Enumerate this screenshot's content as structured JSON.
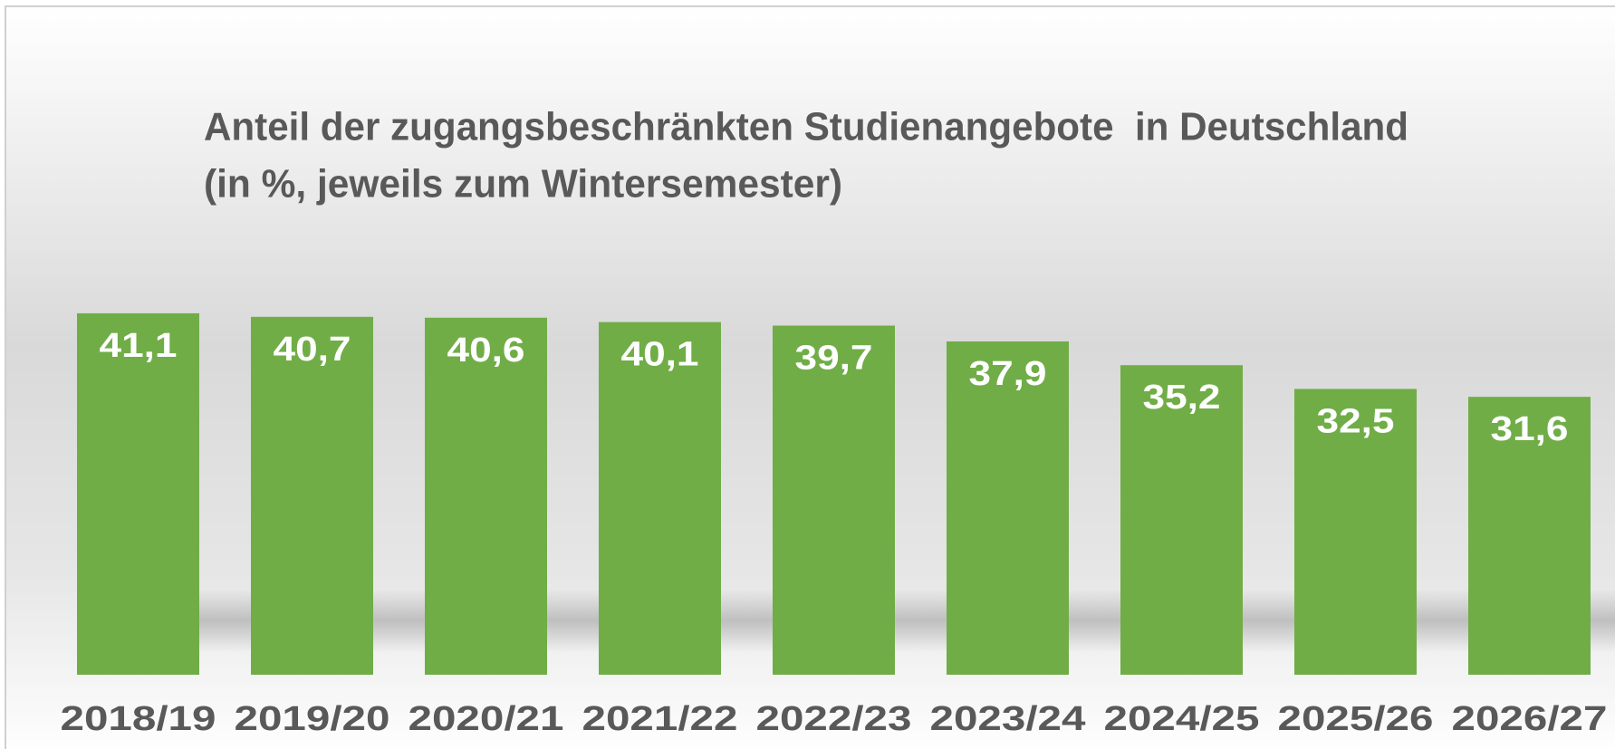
{
  "chart_data": {
    "type": "bar",
    "title": "Anteil der zugangsbeschränkten Studienangebote  in Deutschland",
    "subtitle": "(in %, jeweils zum Wintersemester)",
    "categories": [
      "2018/19",
      "2019/20",
      "2020/21",
      "2021/22",
      "2022/23",
      "2023/24",
      "2024/25",
      "2025/26",
      "2026/27"
    ],
    "values": [
      41.1,
      40.7,
      40.6,
      40.1,
      39.7,
      37.9,
      35.2,
      32.5,
      31.6
    ],
    "value_labels": [
      "41,1",
      "40,7",
      "40,6",
      "40,1",
      "39,7",
      "37,9",
      "35,2",
      "32,5",
      "31,6"
    ],
    "color": "#70ad47"
  }
}
